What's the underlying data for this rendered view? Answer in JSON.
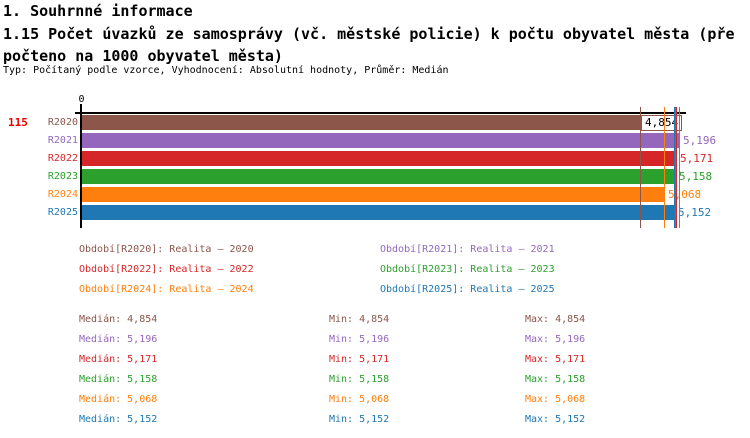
{
  "header": {
    "section_title": "1. Souhrnné informace",
    "indicator_title": "1.15 Počet úvazků ze samosprávy (vč. městské policie) k počtu obyvatel města (přepočteno na 1000 obyvatel města)",
    "meta_line": "Typ: Počítaný podle vzorce, Vyhodnocení: Absolutní hodnoty, Průměr: Medián"
  },
  "chart_data": {
    "type": "bar",
    "orientation": "horizontal",
    "title": "1.15 Počet úvazků ze samosprávy (vč. městské policie) k počtu obyvatel města (přepočteno na 1000 obyvatel města)",
    "left_count": "115",
    "left_count_color": "#ee0000",
    "axis_ticks": [
      "0"
    ],
    "xlim": [
      0,
      5250
    ],
    "grid": false,
    "categories": [
      "R2020",
      "R2021",
      "R2022",
      "R2023",
      "R2024",
      "R2025"
    ],
    "values": [
      4854,
      5196,
      5171,
      5158,
      5068,
      5152
    ],
    "value_labels": [
      "4,854",
      "5,196",
      "5,171",
      "5,158",
      "5,068",
      "5,152"
    ],
    "colors": [
      "#8c564b",
      "#9467bd",
      "#d62728",
      "#2ca02c",
      "#ff7f0e",
      "#1f77b4"
    ],
    "median_line_values": [
      4854,
      5196,
      5171,
      5158,
      5068,
      5152
    ]
  },
  "legend": {
    "items": [
      {
        "label": "Období[R2020]: Realita – 2020",
        "color": "#8c564b"
      },
      {
        "label": "Období[R2021]: Realita – 2021",
        "color": "#9467bd"
      },
      {
        "label": "Období[R2022]: Realita – 2022",
        "color": "#d62728"
      },
      {
        "label": "Období[R2023]: Realita – 2023",
        "color": "#2ca02c"
      },
      {
        "label": "Období[R2024]: Realita – 2024",
        "color": "#ff7f0e"
      },
      {
        "label": "Období[R2025]: Realita – 2025",
        "color": "#1f77b4"
      }
    ]
  },
  "stats": {
    "median_label": "Medián:",
    "min_label": "Min:",
    "max_label": "Max:",
    "rows": [
      {
        "color": "#8c564b",
        "median": "4,854",
        "min": "4,854",
        "max": "4,854"
      },
      {
        "color": "#9467bd",
        "median": "5,196",
        "min": "5,196",
        "max": "5,196"
      },
      {
        "color": "#d62728",
        "median": "5,171",
        "min": "5,171",
        "max": "5,171"
      },
      {
        "color": "#2ca02c",
        "median": "5,158",
        "min": "5,158",
        "max": "5,158"
      },
      {
        "color": "#ff7f0e",
        "median": "5,068",
        "min": "5,068",
        "max": "5,068"
      },
      {
        "color": "#1f77b4",
        "median": "5,152",
        "min": "5,152",
        "max": "5,152"
      }
    ]
  }
}
